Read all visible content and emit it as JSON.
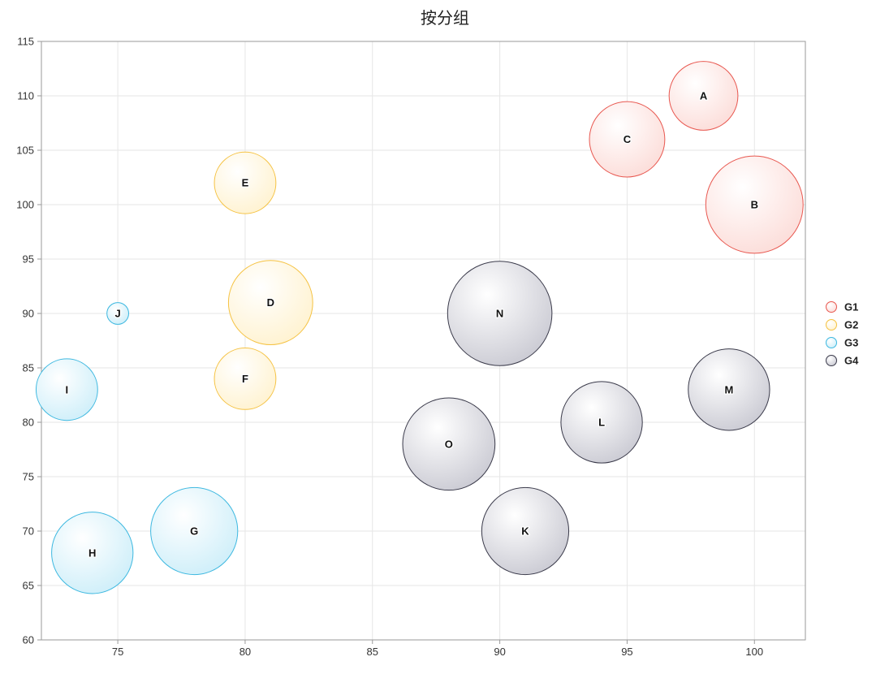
{
  "chart_data": {
    "type": "scatter",
    "subtype": "bubble",
    "title": "按分组",
    "xlabel": "",
    "ylabel": "",
    "xlim": [
      72,
      102
    ],
    "ylim": [
      60,
      115
    ],
    "x_ticks": [
      75,
      80,
      85,
      90,
      95,
      100
    ],
    "y_ticks": [
      60,
      65,
      70,
      75,
      80,
      85,
      90,
      95,
      100,
      105,
      110,
      115
    ],
    "grid": true,
    "legend_position": "right",
    "series": [
      {
        "name": "G1",
        "color": "#e8574f",
        "fill": "#fcdcd8",
        "points": [
          {
            "label": "A",
            "x": 98,
            "y": 110,
            "size": 10
          },
          {
            "label": "B",
            "x": 100,
            "y": 100,
            "size": 20
          },
          {
            "label": "C",
            "x": 95,
            "y": 106,
            "size": 12
          }
        ]
      },
      {
        "name": "G2",
        "color": "#f5c242",
        "fill": "#fff2cf",
        "points": [
          {
            "label": "D",
            "x": 81,
            "y": 91,
            "size": 15
          },
          {
            "label": "E",
            "x": 80,
            "y": 102,
            "size": 8
          },
          {
            "label": "F",
            "x": 80,
            "y": 84,
            "size": 8
          }
        ]
      },
      {
        "name": "G3",
        "color": "#3db8e0",
        "fill": "#cdeef9",
        "points": [
          {
            "label": "G",
            "x": 78,
            "y": 70,
            "size": 16
          },
          {
            "label": "H",
            "x": 74,
            "y": 68,
            "size": 14
          },
          {
            "label": "I",
            "x": 73,
            "y": 83,
            "size": 8
          },
          {
            "label": "J",
            "x": 75,
            "y": 90,
            "size": 1
          }
        ]
      },
      {
        "name": "G4",
        "color": "#3a3a4a",
        "fill": "#c9c9d2",
        "points": [
          {
            "label": "K",
            "x": 91,
            "y": 70,
            "size": 16
          },
          {
            "label": "L",
            "x": 94,
            "y": 80,
            "size": 14
          },
          {
            "label": "M",
            "x": 99,
            "y": 83,
            "size": 14
          },
          {
            "label": "N",
            "x": 90,
            "y": 90,
            "size": 23
          },
          {
            "label": "O",
            "x": 88,
            "y": 78,
            "size": 18
          }
        ]
      }
    ]
  }
}
